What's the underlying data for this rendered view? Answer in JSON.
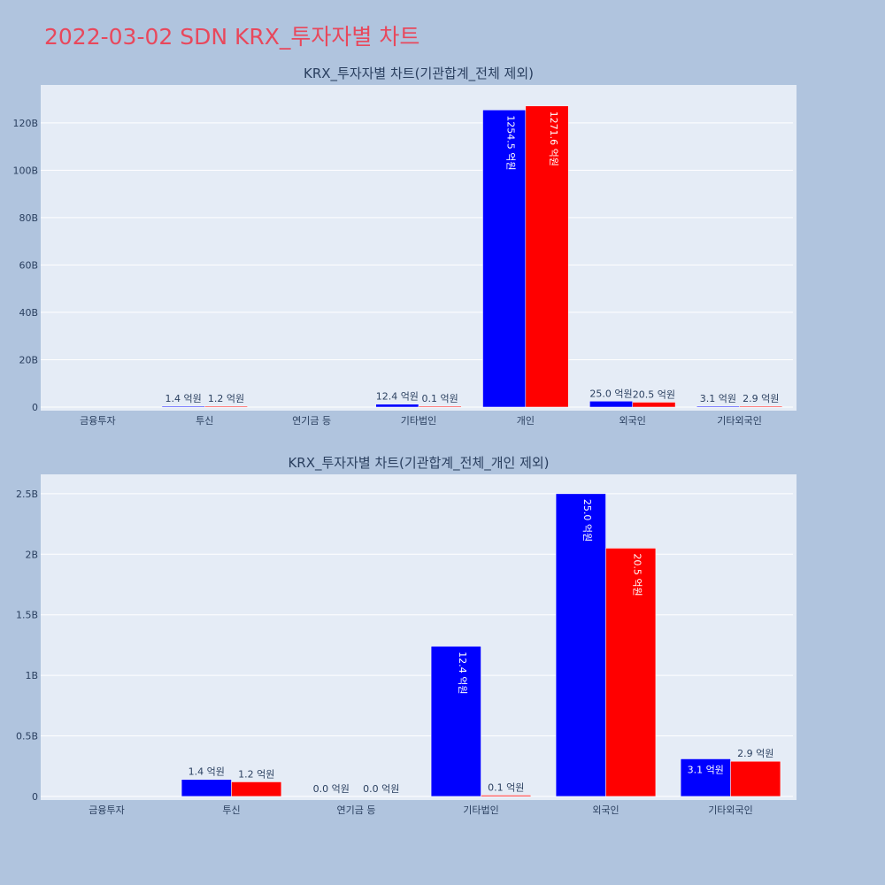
{
  "page_title": "2022-03-02 SDN KRX_투자자별 차트",
  "colors": {
    "series1": "#0000ff",
    "series2": "#ff0000",
    "plot_bg": "#e5ecf6",
    "page_bg": "#b0c4de",
    "title": "#e8485c"
  },
  "chart_data": [
    {
      "type": "bar",
      "title": "KRX_투자자별 차트(기관합계_전체 제외)",
      "categories": [
        "금융투자",
        "투신",
        "연기금 등",
        "기타법인",
        "개인",
        "외국인",
        "기타외국인"
      ],
      "series": [
        {
          "values": [
            0,
            0.14,
            0,
            1.24,
            125.45,
            2.5,
            0.31
          ],
          "labels": [
            "",
            "1.4 억원",
            "",
            "12.4 억원",
            "1254.5 억원",
            "25.0 억원",
            "3.1 억원"
          ]
        },
        {
          "values": [
            0,
            0.12,
            0,
            0.01,
            127.16,
            2.05,
            0.29
          ],
          "labels": [
            "",
            "1.2 억원",
            "",
            "0.1 억원",
            "1271.6 억원",
            "20.5 억원",
            "2.9 억원"
          ]
        }
      ],
      "yticks": [
        "0",
        "20B",
        "40B",
        "60B",
        "80B",
        "100B",
        "120B"
      ],
      "ytick_values": [
        0,
        20,
        40,
        60,
        80,
        100,
        120
      ],
      "ylim": [
        -1.5,
        136
      ],
      "grid": true
    },
    {
      "type": "bar",
      "title": "KRX_투자자별 차트(기관합계_전체_개인 제외)",
      "categories": [
        "금융투자",
        "투신",
        "연기금 등",
        "기타법인",
        "외국인",
        "기타외국인"
      ],
      "series": [
        {
          "values": [
            0,
            0.14,
            0,
            1.24,
            2.5,
            0.31
          ],
          "labels": [
            "",
            "1.4 억원",
            "0.0 억원",
            "12.4 억원",
            "25.0 억원",
            "3.1 억원"
          ]
        },
        {
          "values": [
            0,
            0.12,
            0,
            0.01,
            2.05,
            0.29
          ],
          "labels": [
            "",
            "1.2 억원",
            "0.0 억원",
            "0.1 억원",
            "20.5 억원",
            "2.9 억원"
          ]
        }
      ],
      "yticks": [
        "0",
        "0.5B",
        "1B",
        "1.5B",
        "2B",
        "2.5B"
      ],
      "ytick_values": [
        0,
        0.5,
        1,
        1.5,
        2,
        2.5
      ],
      "ylim": [
        -0.03,
        2.66
      ],
      "grid": true
    }
  ]
}
